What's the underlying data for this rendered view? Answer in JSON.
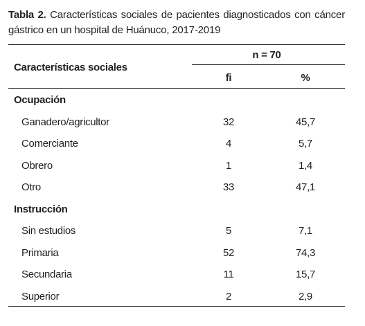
{
  "title": {
    "label": "Tabla 2.",
    "text": "Características sociales de pacientes diagnosticados con cáncer gástrico en un hospital de Huánuco, 2017-2019"
  },
  "table": {
    "header": {
      "characteristic": "Características sociales",
      "group": "n = 70",
      "fi": "fi",
      "percent": "%"
    },
    "sections": [
      {
        "name": "Ocupación",
        "rows": [
          [
            "Ganadero/agricultor",
            "32",
            "45,7"
          ],
          [
            "Comerciante",
            "4",
            "5,7"
          ],
          [
            "Obrero",
            "1",
            "1,4"
          ],
          [
            "Otro",
            "33",
            "47,1"
          ]
        ]
      },
      {
        "name": "Instrucción",
        "rows": [
          [
            "Sin estudios",
            "5",
            "7,1"
          ],
          [
            "Primaria",
            "52",
            "74,3"
          ],
          [
            "Secundaria",
            "11",
            "15,7"
          ],
          [
            "Superior",
            "2",
            "2,9"
          ]
        ]
      }
    ]
  }
}
